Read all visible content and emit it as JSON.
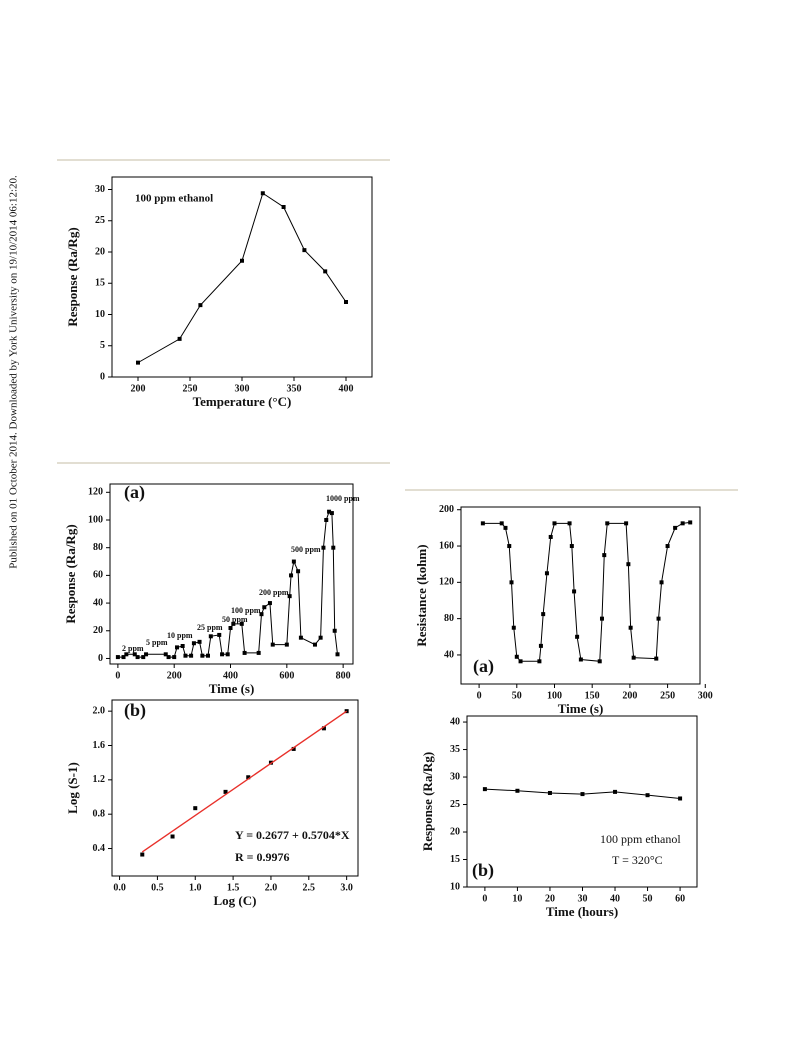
{
  "sidebar_text": "Published on 01 October 2014. Downloaded by York University on 19/10/2014 06:12:20.",
  "chart_data": [
    {
      "type": "line",
      "xlabel": "Temperature (°C)",
      "ylabel": "Response (Ra/Rg)",
      "annotations": [
        "100 ppm ethanol"
      ],
      "xlim": [
        175,
        425
      ],
      "xticks": [
        200,
        250,
        300,
        350,
        400
      ],
      "ylim": [
        0,
        32
      ],
      "yticks": [
        0,
        5,
        10,
        15,
        20,
        25,
        30
      ],
      "series": [
        {
          "mode": "lines+markers",
          "color": "#000000",
          "x": [
            200,
            240,
            260,
            300,
            320,
            340,
            360,
            380,
            400
          ],
          "values": [
            2.3,
            6.1,
            11.5,
            18.6,
            29.4,
            27.2,
            20.3,
            16.9,
            12
          ]
        }
      ]
    },
    {
      "type": "line",
      "xlabel": "Time (s)",
      "ylabel": "Response (Ra/Rg)",
      "annotations": [
        "(a)",
        "2 ppm",
        "5 ppm",
        "10 ppm",
        "25 ppm",
        "50 ppm",
        "100 ppm",
        "200 ppm",
        "500 ppm",
        "1000 ppm"
      ],
      "xlim": [
        -28,
        835
      ],
      "xticks": [
        0,
        200,
        400,
        600,
        800
      ],
      "ylim": [
        -4,
        126
      ],
      "yticks": [
        0,
        20,
        40,
        60,
        80,
        100,
        120
      ],
      "series": [
        {
          "mode": "lines+markers",
          "color": "#000000",
          "x": [
            0,
            20,
            30,
            60,
            70,
            90,
            100,
            170,
            180,
            200,
            210,
            230,
            240,
            260,
            270,
            290,
            300,
            320,
            330,
            360,
            370,
            390,
            400,
            410,
            440,
            450,
            500,
            510,
            520,
            540,
            550,
            600,
            610,
            615,
            625,
            640,
            650,
            700,
            720,
            730,
            740,
            750,
            760,
            765,
            770,
            780
          ],
          "values": [
            1,
            1,
            3,
            3,
            1,
            1,
            3,
            3,
            1,
            1,
            8,
            9,
            2,
            2,
            11,
            12,
            2,
            2,
            16,
            17,
            3,
            3,
            22,
            25,
            25,
            4,
            4,
            32,
            37,
            40,
            10,
            10,
            45,
            60,
            70,
            63,
            15,
            10,
            15,
            80,
            100,
            106,
            105,
            80,
            20,
            3
          ]
        }
      ]
    },
    {
      "type": "line",
      "xlabel": "Log (C)",
      "ylabel": "Log (S-1)",
      "annotations": [
        "(b)",
        "Y = 0.2677 + 0.5704*X",
        "R = 0.9976"
      ],
      "xlim": [
        -0.1,
        3.15
      ],
      "xticks": [
        {
          "value": 0,
          "label": "0.0"
        },
        0.5,
        {
          "value": 1,
          "label": "1.0"
        },
        1.5,
        {
          "value": 2,
          "label": "2.0"
        },
        2.5,
        {
          "value": 3,
          "label": "3.0"
        }
      ],
      "ylim": [
        0.08,
        2.13
      ],
      "yticks": [
        0.4,
        0.8,
        1.2,
        1.6,
        {
          "value": 2,
          "label": "2.0"
        }
      ],
      "series": [
        {
          "mode": "markers",
          "color": "#000000",
          "x": [
            0.3,
            0.7,
            1,
            1.4,
            1.7,
            2,
            2.3,
            2.7,
            3
          ],
          "values": [
            0.33,
            0.54,
            0.87,
            1.06,
            1.23,
            1.4,
            1.56,
            1.8,
            2.0
          ]
        },
        {
          "mode": "lines",
          "color": "#e8302a",
          "x": [
            0.3,
            3
          ],
          "values": [
            0.36,
            2.0
          ]
        }
      ]
    },
    {
      "type": "line",
      "xlabel": "Time (s)",
      "ylabel": "Resistance (kohm)",
      "annotations": [
        "(a)"
      ],
      "xlim": [
        -24,
        293
      ],
      "xticks": [
        0,
        50,
        100,
        150,
        200,
        250,
        300
      ],
      "ylim": [
        8,
        203
      ],
      "yticks": [
        40,
        80,
        120,
        160,
        200
      ],
      "series": [
        {
          "mode": "lines+markers",
          "color": "#000000",
          "x": [
            5,
            30,
            35,
            40,
            43,
            46,
            50,
            55,
            80,
            82,
            85,
            90,
            95,
            100,
            120,
            123,
            126,
            130,
            135,
            160,
            163,
            166,
            170,
            195,
            198,
            201,
            205,
            235,
            238,
            242,
            250,
            260,
            270,
            280
          ],
          "values": [
            185,
            185,
            180,
            160,
            120,
            70,
            38,
            33,
            33,
            50,
            85,
            130,
            170,
            185,
            185,
            160,
            110,
            60,
            35,
            33,
            80,
            150,
            185,
            185,
            140,
            70,
            37,
            36,
            80,
            120,
            160,
            180,
            185,
            186
          ]
        }
      ]
    },
    {
      "type": "line",
      "xlabel": "Time (hours)",
      "ylabel": "Response (Ra/Rg)",
      "annotations": [
        "100 ppm ethanol",
        "T = 320°C",
        "(b)"
      ],
      "xlim": [
        -5.5,
        65.2
      ],
      "xticks": [
        0,
        10,
        20,
        30,
        40,
        50,
        60
      ],
      "ylim": [
        10,
        41.1
      ],
      "yticks": [
        10,
        15,
        20,
        25,
        30,
        35,
        40
      ],
      "series": [
        {
          "mode": "lines+markers",
          "color": "#000000",
          "x": [
            0,
            10,
            20,
            30,
            40,
            50,
            60
          ],
          "values": [
            27.8,
            27.5,
            27.1,
            26.9,
            27.3,
            26.7,
            26.1
          ]
        }
      ]
    }
  ]
}
